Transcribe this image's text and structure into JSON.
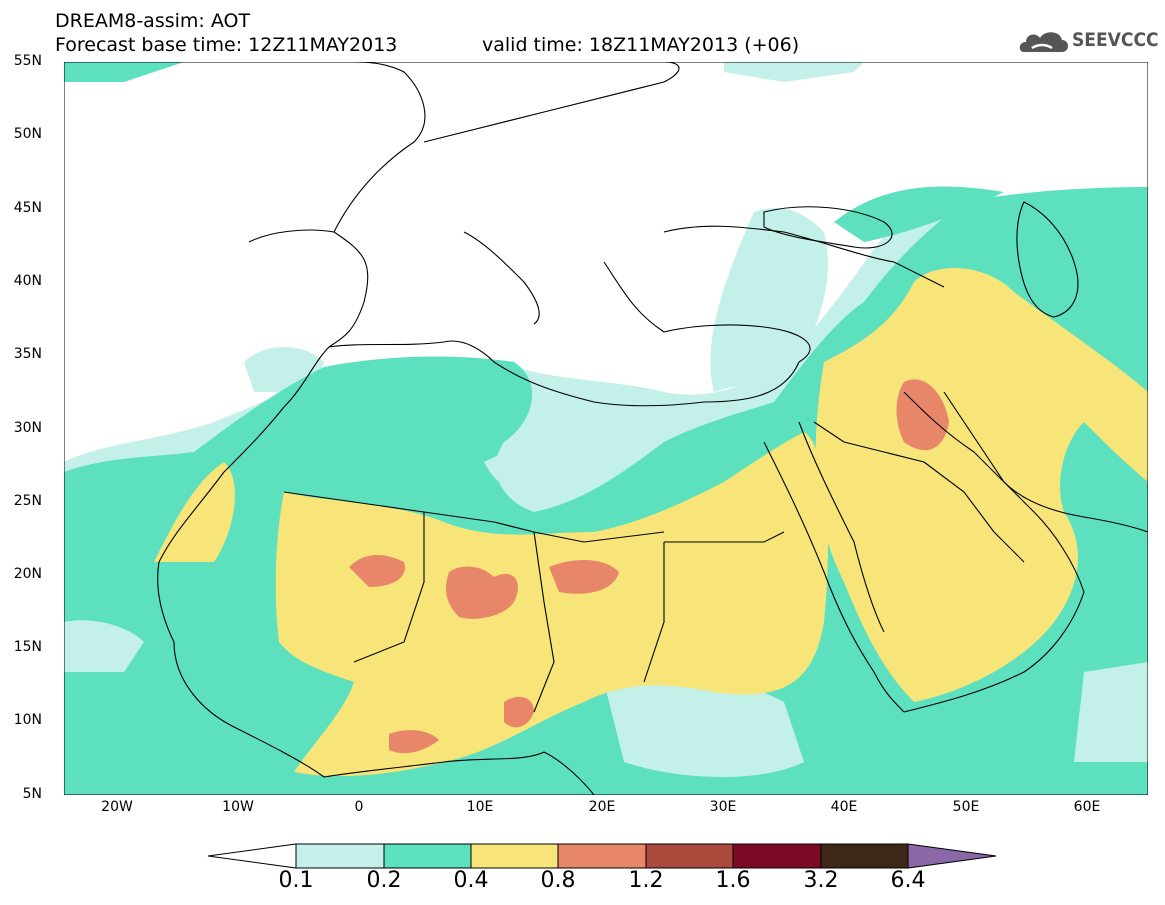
{
  "header": {
    "line1": "DREAM8-assim: AOT",
    "line2": "Forecast base time: 12Z11MAY2013",
    "line3": "valid time: 18Z11MAY2013 (+06)"
  },
  "logo": {
    "text": "SEEVCCC",
    "icon": "cloud-icon",
    "color": "#5a5a5a"
  },
  "map": {
    "lat_labels": [
      "55N",
      "50N",
      "45N",
      "40N",
      "35N",
      "30N",
      "25N",
      "20N",
      "15N",
      "10N",
      "5N"
    ],
    "lon_labels": [
      "20W",
      "10W",
      "0",
      "10E",
      "20E",
      "30E",
      "40E",
      "50E",
      "60E"
    ],
    "lat_range": [
      5,
      55
    ],
    "lon_range": [
      -25,
      65
    ]
  },
  "colorbar": {
    "levels": [
      "0.1",
      "0.2",
      "0.4",
      "0.8",
      "1.2",
      "1.6",
      "3.2",
      "6.4"
    ],
    "colors": [
      "#ffffff",
      "#c4f0ea",
      "#5ce0be",
      "#f7e57a",
      "#e8866a",
      "#a94a3c",
      "#7a0a28",
      "#3d2817",
      "#8a68a8"
    ]
  }
}
